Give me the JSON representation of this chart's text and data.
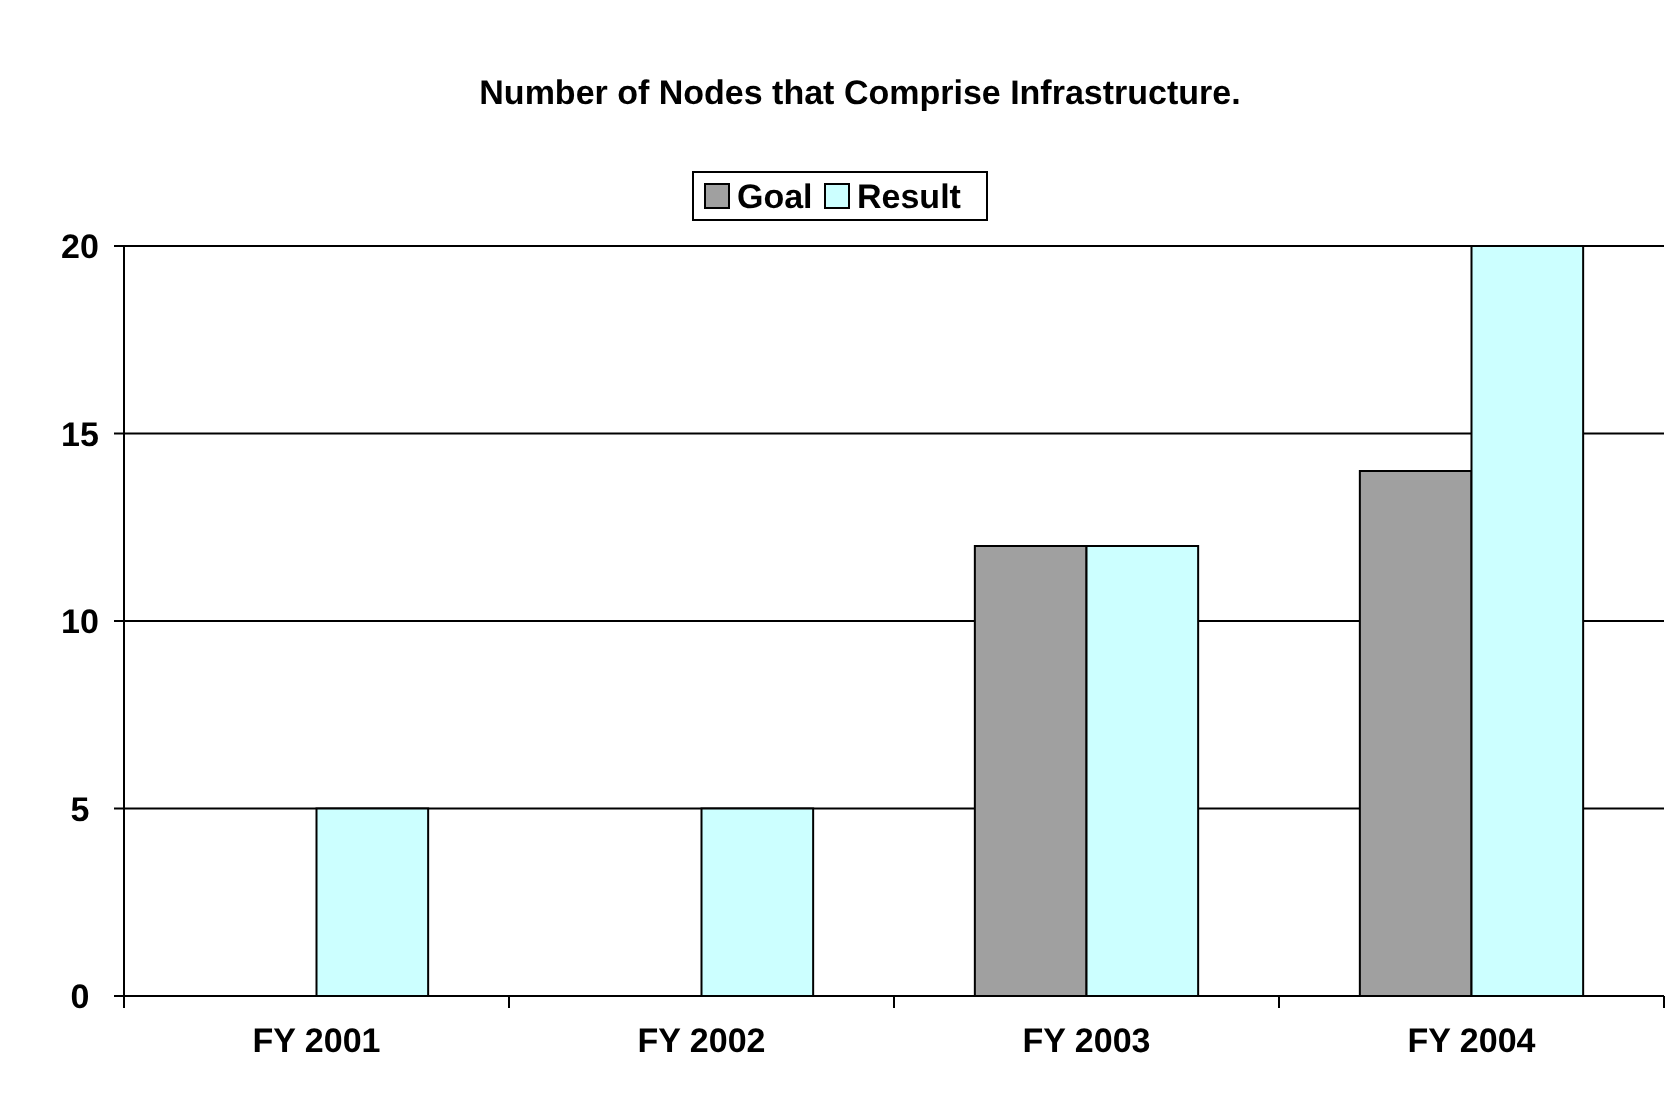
{
  "chart_data": {
    "type": "bar",
    "title": "Number of Nodes that Comprise Infrastructure.",
    "categories": [
      "FY 2001",
      "FY 2002",
      "FY 2003",
      "FY 2004"
    ],
    "series": [
      {
        "name": "Goal",
        "color": "#a0a0a0",
        "values": [
          null,
          null,
          12,
          14
        ]
      },
      {
        "name": "Result",
        "color": "#ccffff",
        "values": [
          5,
          5,
          12,
          20
        ]
      }
    ],
    "ylim": [
      0,
      20
    ],
    "yticks": [
      0,
      5,
      10,
      15,
      20
    ],
    "grid": "y",
    "legend": "top"
  }
}
